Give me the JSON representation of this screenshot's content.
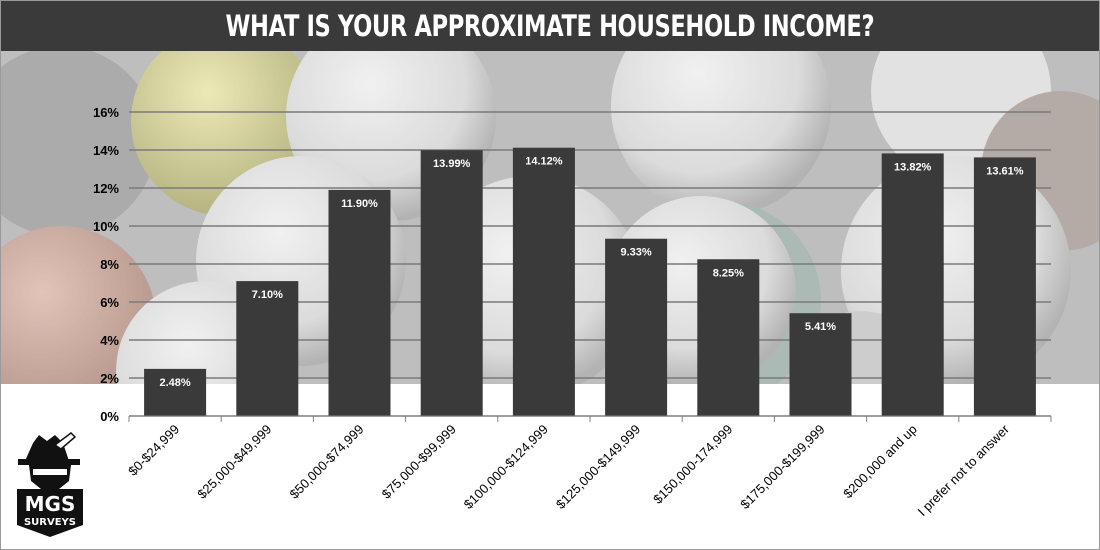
{
  "title": "WHAT IS YOUR APPROXIMATE HOUSEHOLD INCOME?",
  "logo": {
    "line1": "MGS",
    "line2": "SURVEYS"
  },
  "colors": {
    "bar": "#3a3a3a",
    "title_bg": "#3a3a3a",
    "grid": "#7a7a7a",
    "label": "#ffffff",
    "axis_text": "#000000"
  },
  "chart_data": {
    "type": "bar",
    "title": "WHAT IS YOUR APPROXIMATE HOUSEHOLD INCOME?",
    "xlabel": "",
    "ylabel": "",
    "ylim": [
      0,
      16
    ],
    "yticks": [
      0,
      2,
      4,
      6,
      8,
      10,
      12,
      14,
      16
    ],
    "ytick_labels": [
      "0%",
      "2%",
      "4%",
      "6%",
      "8%",
      "10%",
      "12%",
      "14%",
      "16%"
    ],
    "grid": true,
    "legend": "none",
    "categories": [
      "$0-$24,999",
      "$25,000-$49,999",
      "$50,000-$74,999",
      "$75,000-$99,999",
      "$100,000-$124,999",
      "$125,000-$149,999",
      "$150,000-174,999",
      "$175,000-$199,999",
      "$200,000 and up",
      "I prefer not to answer"
    ],
    "values": [
      2.48,
      7.1,
      11.9,
      13.99,
      14.12,
      9.33,
      8.25,
      5.41,
      13.82,
      13.61
    ],
    "value_labels": [
      "2.48%",
      "7.10%",
      "11.90%",
      "13.99%",
      "14.12%",
      "9.33%",
      "8.25%",
      "5.41%",
      "13.82%",
      "13.61%"
    ]
  }
}
